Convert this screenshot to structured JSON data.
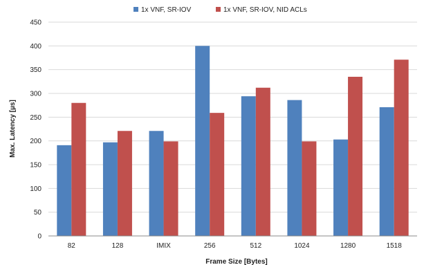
{
  "chart_data": {
    "type": "bar",
    "title": "",
    "xlabel": "Frame Size [Bytes]",
    "ylabel": "Max. Latency [µs]",
    "categories": [
      "82",
      "128",
      "IMIX",
      "256",
      "512",
      "1024",
      "1280",
      "1518"
    ],
    "series": [
      {
        "name": "1x VNF,  SR-IOV",
        "color": "#4f81bd",
        "values": [
          191,
          197,
          221,
          400,
          294,
          286,
          203,
          271
        ]
      },
      {
        "name": "1x VNF, SR-IOV, NID ACLs",
        "color": "#c0504d",
        "values": [
          280,
          221,
          199,
          259,
          312,
          199,
          335,
          371
        ]
      }
    ],
    "ylim": [
      0,
      450
    ],
    "yticks": [
      0,
      50,
      100,
      150,
      200,
      250,
      300,
      350,
      400,
      450
    ],
    "grid": true,
    "legend_position": "top"
  }
}
